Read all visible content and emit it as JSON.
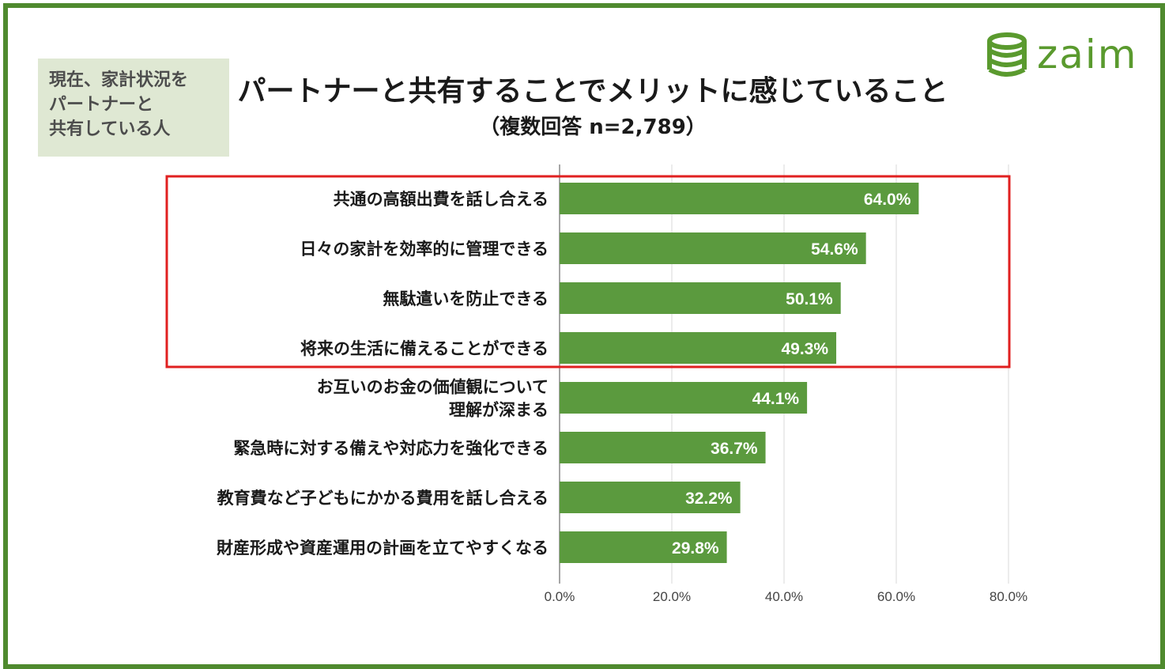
{
  "badge": {
    "lines": [
      "現在、家計状況を",
      "パートナーと",
      "共有している人"
    ]
  },
  "header": {
    "title": "パートナーと共有することでメリットに感じていること",
    "subtitle": "（複数回答 n=2,789）"
  },
  "logo": {
    "text": "zaim",
    "icon": "coin-stack-icon",
    "color": "#5a9a2e"
  },
  "colors": {
    "bar": "#5b9a3e",
    "frame": "#4f8a2e",
    "highlight": "#e02020",
    "grid": "#d9d9d9"
  },
  "chart_data": {
    "type": "bar",
    "orientation": "horizontal",
    "categories": [
      [
        "共通の高額出費を話し合える"
      ],
      [
        "日々の家計を効率的に管理できる"
      ],
      [
        "無駄遣いを防止できる"
      ],
      [
        "将来の生活に備えることができる"
      ],
      [
        "お互いのお金の価値観について",
        "理解が深まる"
      ],
      [
        "緊急時に対する備えや対応力を強化できる"
      ],
      [
        "教育費など子どもにかかる費用を話し合える"
      ],
      [
        "財産形成や資産運用の計画を立てやすくなる"
      ]
    ],
    "values": [
      64.0,
      54.6,
      50.1,
      49.3,
      44.1,
      36.7,
      32.2,
      29.8
    ],
    "value_labels": [
      "64.0%",
      "54.6%",
      "50.1%",
      "49.3%",
      "44.1%",
      "36.7%",
      "32.2%",
      "29.8%"
    ],
    "xlim": [
      0,
      80
    ],
    "xticks": [
      0,
      20,
      40,
      60,
      80
    ],
    "xtick_labels": [
      "0.0%",
      "20.0%",
      "40.0%",
      "60.0%",
      "80.0%"
    ],
    "grid": true,
    "highlight": {
      "from_index": 0,
      "to_index": 3
    }
  }
}
